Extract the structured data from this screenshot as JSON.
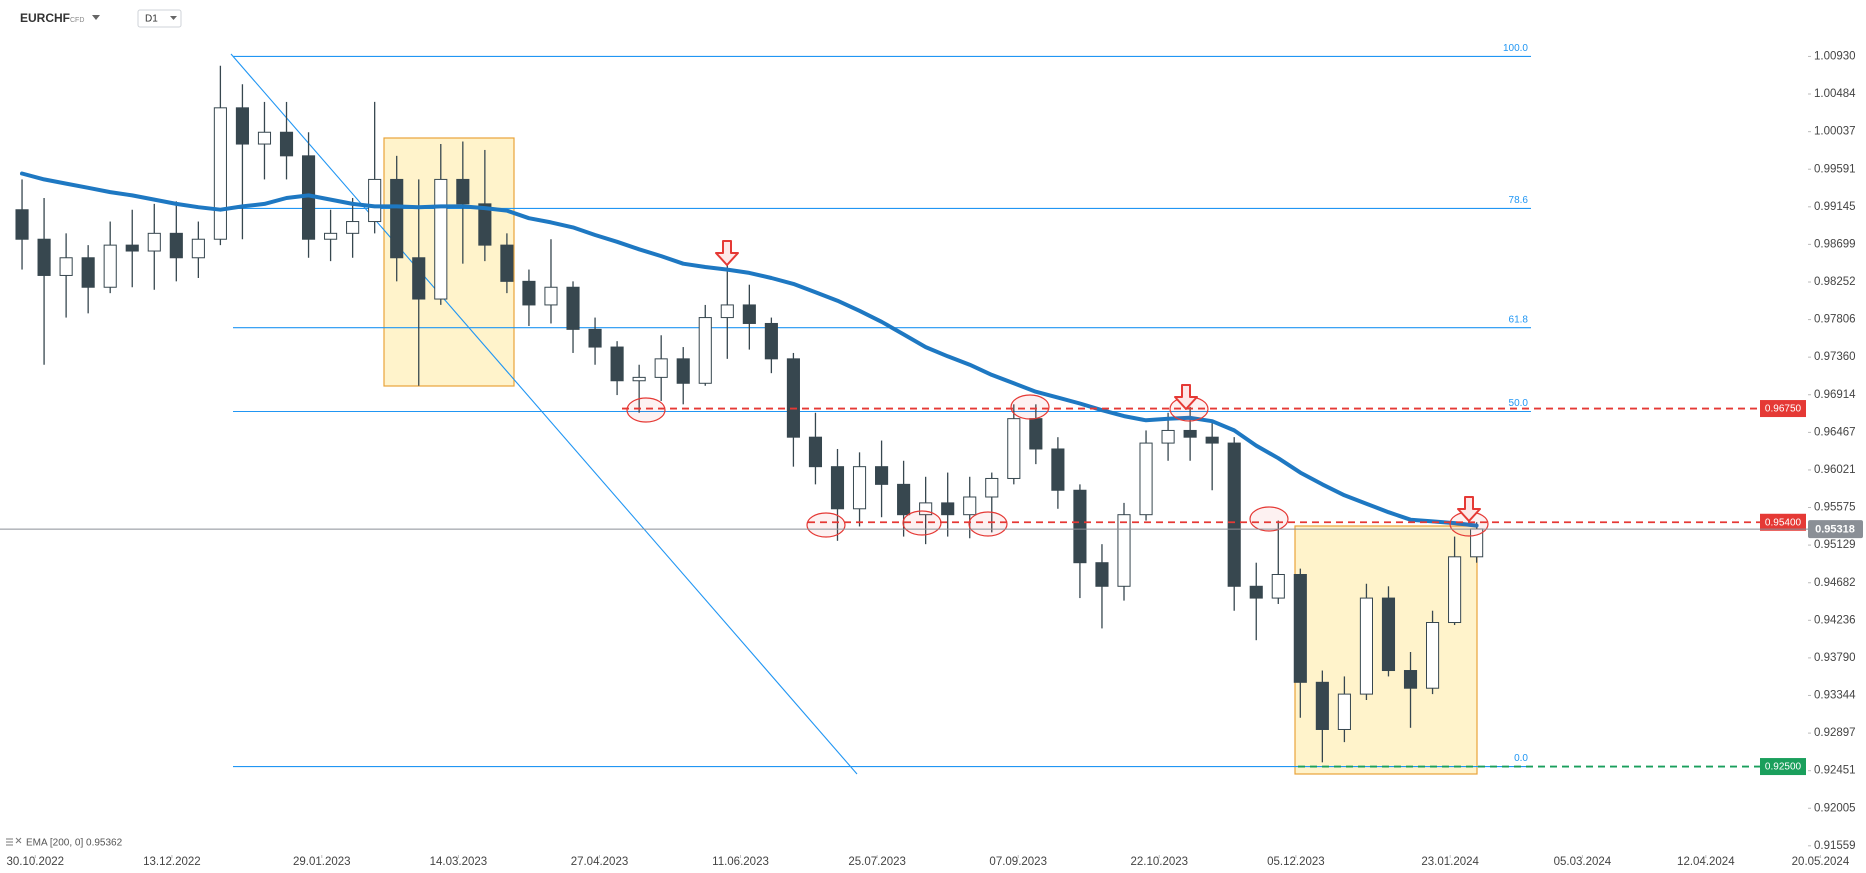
{
  "chart_data": {
    "type": "candlestick",
    "symbol": "EURCHF",
    "instrument": "CFD",
    "timeframe": "D1",
    "x": [
      "2022-10-26",
      "2022-11-02",
      "2022-11-09",
      "2022-11-16",
      "2022-11-23",
      "2022-11-30",
      "2022-12-07",
      "2022-12-14",
      "2022-12-21",
      "2022-12-28",
      "2023-01-04",
      "2023-01-11",
      "2023-01-18",
      "2023-01-25",
      "2023-02-01",
      "2023-02-08",
      "2023-02-15",
      "2023-02-22",
      "2023-03-01",
      "2023-03-08",
      "2023-03-15",
      "2023-03-22",
      "2023-03-29",
      "2023-04-05",
      "2023-04-12",
      "2023-04-19",
      "2023-04-26",
      "2023-05-03",
      "2023-05-10",
      "2023-05-17",
      "2023-05-24",
      "2023-05-31",
      "2023-06-07",
      "2023-06-14",
      "2023-06-21",
      "2023-06-28",
      "2023-07-05",
      "2023-07-12",
      "2023-07-19",
      "2023-07-26",
      "2023-08-02",
      "2023-08-09",
      "2023-08-16",
      "2023-08-23",
      "2023-08-30",
      "2023-09-06",
      "2023-09-13",
      "2023-09-20",
      "2023-09-27",
      "2023-10-04",
      "2023-10-11",
      "2023-10-18",
      "2023-10-25",
      "2023-11-01",
      "2023-11-08",
      "2023-11-15",
      "2023-11-22",
      "2023-11-29",
      "2023-12-06",
      "2023-12-13",
      "2023-12-20",
      "2023-12-27",
      "2024-01-03",
      "2024-01-10",
      "2024-01-17",
      "2024-01-24",
      "2024-01-31"
    ],
    "open": [
      0.9911,
      0.9876,
      0.9833,
      0.9854,
      0.9819,
      0.9869,
      0.9862,
      0.9883,
      0.9854,
      0.9876,
      1.0032,
      0.9989,
      1.0003,
      0.9975,
      0.9876,
      0.9883,
      0.9897,
      0.9947,
      0.9854,
      0.9805,
      0.9947,
      0.9918,
      0.9869,
      0.9826,
      0.9798,
      0.9819,
      0.9769,
      0.9748,
      0.9708,
      0.9712,
      0.9734,
      0.9705,
      0.9783,
      0.9798,
      0.9776,
      0.9734,
      0.9641,
      0.9606,
      0.9556,
      0.9606,
      0.9585,
      0.9549,
      0.9563,
      0.9549,
      0.957,
      0.9592,
      0.9663,
      0.9627,
      0.9578,
      0.9492,
      0.9464,
      0.9549,
      0.9634,
      0.9649,
      0.9641,
      0.9634,
      0.9464,
      0.945,
      0.9478,
      0.935,
      0.9294,
      0.9336,
      0.945,
      0.9364,
      0.9343,
      0.9421,
      0.9499
    ],
    "high": [
      0.9947,
      0.9925,
      0.9883,
      0.9869,
      0.9897,
      0.9911,
      0.9918,
      0.9921,
      0.9897,
      1.0082,
      1.006,
      1.0039,
      1.0039,
      1.0003,
      0.9911,
      0.9925,
      1.0039,
      0.9975,
      0.9947,
      0.9989,
      0.9992,
      0.9982,
      0.9883,
      0.984,
      0.9876,
      0.9826,
      0.9783,
      0.9755,
      0.9727,
      0.9762,
      0.9748,
      0.9798,
      0.9845,
      0.9822,
      0.9783,
      0.9741,
      0.967,
      0.9627,
      0.9623,
      0.9637,
      0.9613,
      0.9594,
      0.9599,
      0.9594,
      0.9599,
      0.968,
      0.968,
      0.9641,
      0.9585,
      0.9514,
      0.9563,
      0.9649,
      0.967,
      0.9677,
      0.966,
      0.9641,
      0.9492,
      0.9542,
      0.9485,
      0.9364,
      0.9357,
      0.9467,
      0.9464,
      0.9386,
      0.9435,
      0.9523,
      0.954
    ],
    "low": [
      0.984,
      0.9727,
      0.9783,
      0.9788,
      0.9812,
      0.9819,
      0.9816,
      0.9826,
      0.983,
      0.9869,
      0.9876,
      0.9947,
      0.9947,
      0.9854,
      0.985,
      0.9854,
      0.9883,
      0.9826,
      0.9702,
      0.9798,
      0.9847,
      0.985,
      0.9812,
      0.9773,
      0.9776,
      0.9741,
      0.9727,
      0.9691,
      0.967,
      0.9684,
      0.968,
      0.9702,
      0.9734,
      0.9745,
      0.9717,
      0.9606,
      0.9585,
      0.9518,
      0.9535,
      0.9546,
      0.9523,
      0.9514,
      0.9523,
      0.9521,
      0.9528,
      0.9585,
      0.9609,
      0.9556,
      0.945,
      0.9414,
      0.9447,
      0.9542,
      0.9613,
      0.9613,
      0.9578,
      0.9435,
      0.94,
      0.9443,
      0.9308,
      0.9255,
      0.9279,
      0.9329,
      0.9357,
      0.9296,
      0.9336,
      0.9418,
      0.9492
    ],
    "close": [
      0.9876,
      0.9833,
      0.9854,
      0.9819,
      0.9869,
      0.9862,
      0.9883,
      0.9854,
      0.9876,
      1.0032,
      0.9989,
      1.0003,
      0.9975,
      0.9876,
      0.9883,
      0.9897,
      0.9947,
      0.9854,
      0.9805,
      0.9947,
      0.9918,
      0.9869,
      0.9826,
      0.9798,
      0.9819,
      0.9769,
      0.9748,
      0.9708,
      0.9712,
      0.9734,
      0.9705,
      0.9783,
      0.9798,
      0.9776,
      0.9734,
      0.9641,
      0.9606,
      0.9556,
      0.9606,
      0.9585,
      0.9549,
      0.9563,
      0.9549,
      0.957,
      0.9592,
      0.9663,
      0.9627,
      0.9578,
      0.9492,
      0.9464,
      0.9549,
      0.9634,
      0.9649,
      0.9641,
      0.9634,
      0.9464,
      0.945,
      0.9478,
      0.935,
      0.9294,
      0.9336,
      0.945,
      0.9364,
      0.9343,
      0.9421,
      0.9499,
      0.9532
    ],
    "bull_color": "#ffffff",
    "bear_color": "#37474f",
    "series": [
      {
        "name": "EMA [200, 0] 0.95362",
        "color": "#1e78c2",
        "values": [
          0.9954,
          0.9947,
          0.9942,
          0.9937,
          0.9932,
          0.9928,
          0.9923,
          0.9918,
          0.9914,
          0.9911,
          0.9915,
          0.9918,
          0.9925,
          0.9928,
          0.9923,
          0.9918,
          0.9915,
          0.9915,
          0.9914,
          0.9915,
          0.9915,
          0.9913,
          0.991,
          0.9901,
          0.9896,
          0.989,
          0.9881,
          0.9873,
          0.9864,
          0.9856,
          0.9847,
          0.9843,
          0.984,
          0.9836,
          0.983,
          0.9823,
          0.9813,
          0.9803,
          0.9791,
          0.9778,
          0.9763,
          0.9748,
          0.9737,
          0.9727,
          0.9715,
          0.9705,
          0.9695,
          0.9688,
          0.9681,
          0.9673,
          0.9666,
          0.9661,
          0.9663,
          0.9664,
          0.966,
          0.9649,
          0.9631,
          0.9616,
          0.9599,
          0.9585,
          0.9572,
          0.9562,
          0.9552,
          0.9543,
          0.9541,
          0.9539,
          0.9536
        ]
      }
    ],
    "xlim": [
      "2022-10-19",
      "2024-05-10"
    ],
    "xticks": [
      {
        "value": "2022-10-30",
        "label": "30.10.2022"
      },
      {
        "value": "2022-12-13",
        "label": "13.12.2022"
      },
      {
        "value": "2023-01-29",
        "label": "29.01.2023"
      },
      {
        "value": "2023-03-14",
        "label": "14.03.2023"
      },
      {
        "value": "2023-04-27",
        "label": "27.04.2023"
      },
      {
        "value": "2023-06-11",
        "label": "11.06.2023"
      },
      {
        "value": "2023-07-25",
        "label": "25.07.2023"
      },
      {
        "value": "2023-09-07",
        "label": "07.09.2023"
      },
      {
        "value": "2023-10-22",
        "label": "22.10.2023"
      },
      {
        "value": "2023-12-05",
        "label": "05.12.2023"
      },
      {
        "value": "2024-01-23",
        "label": "23.01.2024"
      },
      {
        "value": "2024-03-05",
        "label": "05.03.2024"
      },
      {
        "value": "2024-04-12",
        "label": "12.04.2024"
      },
      {
        "value": "2024-05-20",
        "label": "20.05.2024"
      }
    ],
    "ylim": [
      0.9145,
      1.016
    ],
    "yticks": [
      {
        "value": 1.0093,
        "label": "1.00930"
      },
      1.00484,
      1.00037,
      0.99591,
      0.99145,
      0.98699,
      0.98252,
      0.97806,
      {
        "value": 0.9736,
        "label": "0.97360"
      },
      0.96914,
      0.96467,
      0.96021,
      0.95575,
      0.95129,
      0.94682,
      0.94236,
      {
        "value": 0.9379,
        "label": "0.93790"
      },
      0.93344,
      0.92897,
      0.92451,
      0.92005,
      0.91559
    ],
    "fibonacci": {
      "high": 1.0093,
      "low": 0.925,
      "color": "#2196f3",
      "levels": [
        {
          "value": 100,
          "label": "100.0"
        },
        78.6,
        61.8,
        {
          "value": 50,
          "label": "50.0"
        },
        {
          "value": 0,
          "label": "0.0"
        }
      ]
    },
    "levels": [
      {
        "value": 0.9675,
        "label": "0.96750",
        "color": "#e53935"
      },
      {
        "value": 0.954,
        "label": "0.95400",
        "color": "#e53935"
      },
      {
        "value": 0.925,
        "label": "0.92500",
        "color": "#1a9f5c"
      }
    ],
    "last_price": 0.95318
  }
}
